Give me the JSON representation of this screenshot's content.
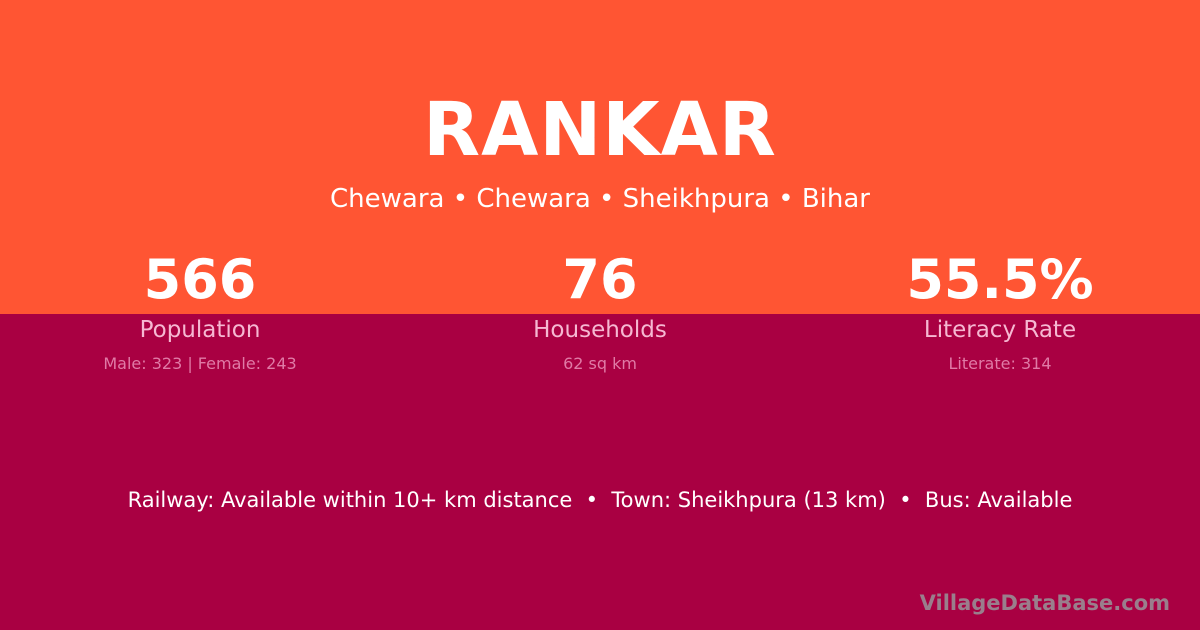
{
  "title": "RANKAR",
  "subtitle": "Chewara • Chewara • Sheikhpura • Bihar",
  "stats": [
    {
      "value": "566",
      "label": "Population",
      "detail": "Male: 323 | Female: 243"
    },
    {
      "value": "76",
      "label": "Households",
      "detail": "62 sq km"
    },
    {
      "value": "55.5%",
      "label": "Literacy Rate",
      "detail": "Literate: 314"
    }
  ],
  "info": "Railway: Available within 10+ km distance  •  Town: Sheikhpura (13 km)  •  Bus: Available",
  "brand": "VillageDataBase.com",
  "colors": {
    "top": "#FF5533",
    "bottom": "#A90042"
  }
}
